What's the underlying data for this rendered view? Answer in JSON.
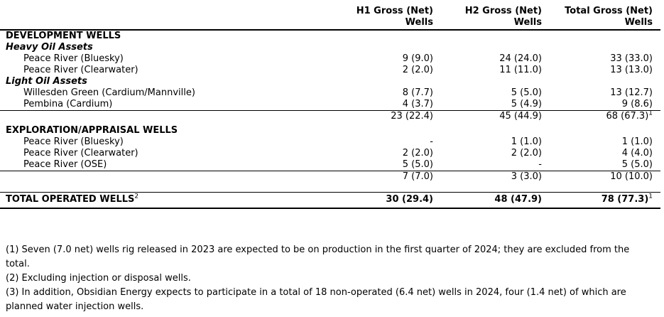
{
  "table": {
    "columns": [
      {
        "line1": "H1 Gross (Net)",
        "line2": "Wells"
      },
      {
        "line1": "H2 Gross (Net)",
        "line2": "Wells"
      },
      {
        "line1": "Total Gross (Net)",
        "line2": "Wells"
      }
    ],
    "rows": [
      {
        "label": "DEVELOPMENT WELLS",
        "values": [
          "",
          "",
          ""
        ]
      },
      {
        "label": "Heavy Oil Assets",
        "values": [
          "",
          "",
          ""
        ]
      },
      {
        "label": "Peace River (Bluesky)",
        "values": [
          "9 (9.0)",
          "24 (24.0)",
          "33 (33.0)"
        ]
      },
      {
        "label": "Peace River (Clearwater)",
        "values": [
          "2 (2.0)",
          "11 (11.0)",
          "13 (13.0)"
        ]
      },
      {
        "label": "Light Oil Assets",
        "values": [
          "",
          "",
          ""
        ]
      },
      {
        "label": "Willesden Green (Cardium/Mannville)",
        "values": [
          "8 (7.7)",
          "5 (5.0)",
          "13 (12.7)"
        ]
      },
      {
        "label": "Pembina (Cardium)",
        "values": [
          "4 (3.7)",
          "5 (4.9)",
          "9 (8.6)"
        ]
      },
      {
        "label": "",
        "values": [
          "23 (22.4)",
          "45 (44.9)",
          "68 (67.3)"
        ],
        "total_sup": "1"
      },
      {
        "label": "EXPLORATION/APPRAISAL WELLS",
        "values": [
          "",
          "",
          ""
        ]
      },
      {
        "label": "Peace River (Bluesky)",
        "values": [
          "-",
          "1 (1.0)",
          "1 (1.0)"
        ]
      },
      {
        "label": "Peace River (Clearwater)",
        "values": [
          "2 (2.0)",
          "2 (2.0)",
          "4 (4.0)"
        ]
      },
      {
        "label": "Peace River (OSE)",
        "values": [
          "5 (5.0)",
          "-",
          "5 (5.0)"
        ]
      },
      {
        "label": "",
        "values": [
          "7 (7.0)",
          "3 (3.0)",
          "10 (10.0)"
        ]
      },
      {
        "label": "TOTAL OPERATED WELLS",
        "label_sup": "2",
        "values": [
          "30 (29.4)",
          "48 (47.9)",
          "78 (77.3)"
        ],
        "total_sup": "1"
      }
    ]
  },
  "footnotes": [
    {
      "text": "(1) Seven (7.0 net) wells rig released in 2023 are expected to be on production in the first quarter of 2024; they are excluded from the total."
    },
    {
      "text": "(2) Excluding injection or disposal wells."
    },
    {
      "text": "(3) In addition, Obsidian Energy expects to participate in a total of 18 non-operated (6.4 net) wells in 2024, four (1.4 net) of which are planned water injection wells."
    }
  ]
}
